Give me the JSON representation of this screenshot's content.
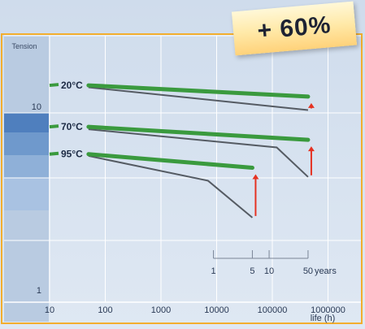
{
  "badge": "+ 60%",
  "chart_data": {
    "type": "line",
    "ylabel": "Tension",
    "xlabel": "life (h)",
    "x_scale": "log",
    "xlim": [
      6,
      3000000
    ],
    "x_ticks": [
      10,
      100,
      1000,
      10000,
      100000,
      1000000
    ],
    "x_tick_labels": [
      "10",
      "100",
      "1000",
      "10000",
      "100000",
      "1000000"
    ],
    "y_scale": "log",
    "y_tick_labels": [
      "10",
      "1"
    ],
    "grid": true,
    "years_axis": {
      "ticks": [
        {
          "label": "1",
          "hours": 8760
        },
        {
          "label": "5",
          "hours": 43800
        },
        {
          "label": "10",
          "hours": 87600
        },
        {
          "label": "50",
          "hours": 438000
        }
      ],
      "unit": "years"
    },
    "temperatures": [
      {
        "label": "20°C",
        "new_material": [
          [
            50,
            10.6
          ],
          [
            438000,
            9.0
          ]
        ],
        "old_material": [
          [
            50,
            10.3
          ],
          [
            438000,
            7.4
          ]
        ],
        "improvement_at": 438000
      },
      {
        "label": "70°C",
        "new_material": [
          [
            50,
            5.8
          ],
          [
            438000,
            4.8
          ]
        ],
        "old_material": [
          [
            50,
            5.6
          ],
          [
            120000,
            4.3
          ],
          [
            438000,
            2.8
          ]
        ],
        "improvement_at": 438000
      },
      {
        "label": "95°C",
        "new_material": [
          [
            50,
            3.9
          ],
          [
            43800,
            3.2
          ]
        ],
        "old_material": [
          [
            50,
            3.8
          ],
          [
            7000,
            2.65
          ],
          [
            43800,
            1.55
          ]
        ],
        "improvement_at": 43800
      }
    ],
    "colors": {
      "new_material": "#3a9a3e",
      "old_material": "#555b63",
      "improvement_arrow": "#e53222",
      "grid": "#ffffff",
      "frame": "#f2ae2e"
    }
  }
}
